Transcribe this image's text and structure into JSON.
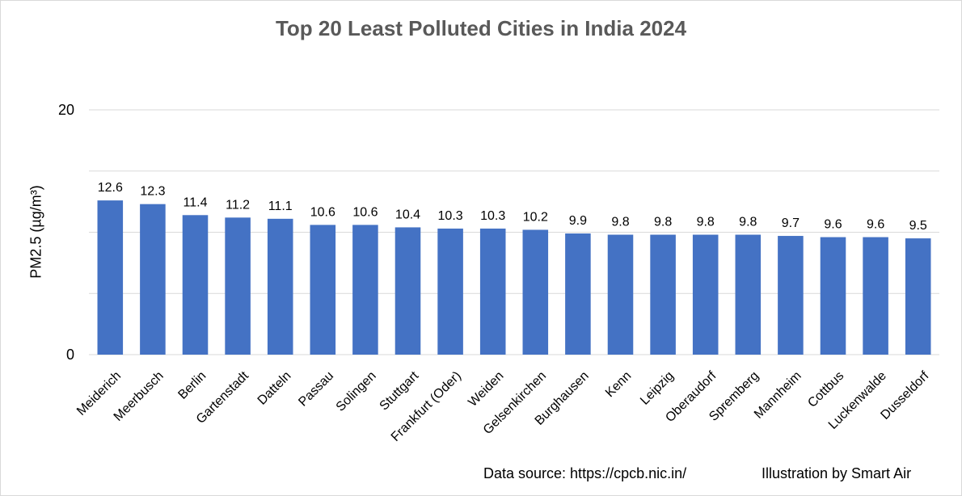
{
  "chart_data": {
    "type": "bar",
    "title": "Top 20 Least Polluted Cities in India 2024",
    "ylabel": "PM2.5 (µg/m³)",
    "xlabel": "",
    "ylim": [
      0,
      20
    ],
    "yticks": [
      0,
      20
    ],
    "grid": true,
    "bar_color": "#4472C4",
    "categories": [
      "Meiderich",
      "Meerbusch",
      "Berlin",
      "Gartenstadt",
      "Datteln",
      "Passau",
      "Solingen",
      "Stuttgart",
      "Frankfurt (Oder)",
      "Weiden",
      "Gelsenkirchen",
      "Burghausen",
      "Kenn",
      "Leipzig",
      "Oberaudorf",
      "Spremberg",
      "Mannheim",
      "Cottbus",
      "Luckenwalde",
      "Dusseldorf"
    ],
    "values": [
      12.6,
      12.3,
      11.4,
      11.2,
      11.1,
      10.6,
      10.6,
      10.4,
      10.3,
      10.3,
      10.2,
      9.9,
      9.8,
      9.8,
      9.8,
      9.8,
      9.7,
      9.6,
      9.6,
      9.5
    ],
    "value_labels": [
      "12.6",
      "12.3",
      "11.4",
      "11.2",
      "11.1",
      "10.6",
      "10.6",
      "10.4",
      "10.3",
      "10.3",
      "10.2",
      "9.9",
      "9.8",
      "9.8",
      "9.8",
      "9.8",
      "9.7",
      "9.6",
      "9.6",
      "9.5"
    ]
  },
  "footer": {
    "source": "Data source: https://cpcb.nic.in/",
    "credit": "Illustration by Smart Air"
  }
}
